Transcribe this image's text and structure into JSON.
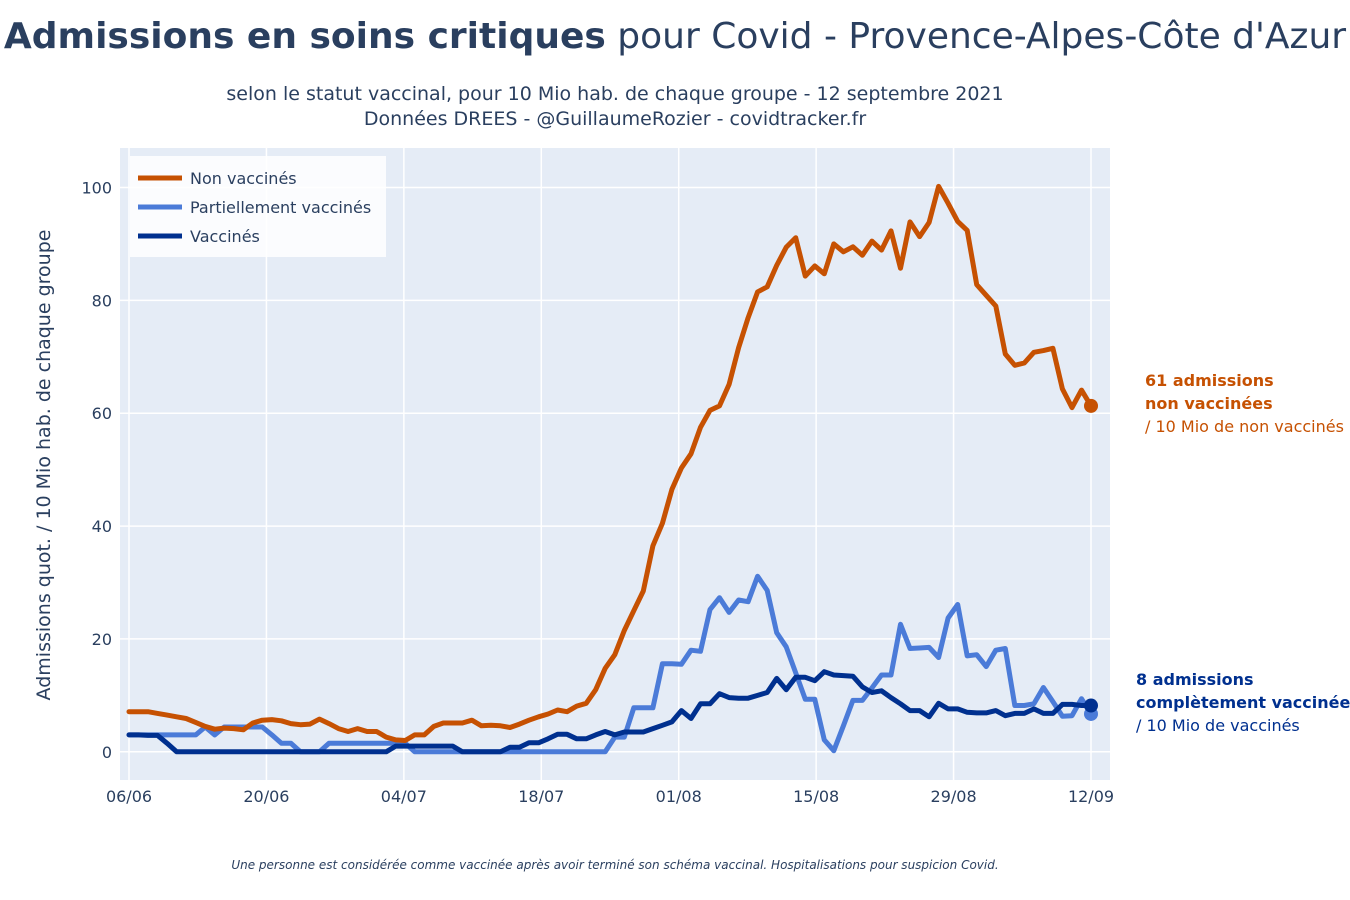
{
  "title_bold": "Admissions en soins critiques",
  "title_rest": " pour Covid - Provence-Alpes-Côte d'Azur",
  "subtitle_line1": "selon le statut vaccinal, pour 10 Mio hab. de chaque groupe - 12 septembre 2021",
  "subtitle_line2": "Données DREES - @GuillaumeRozier - covidtracker.fr",
  "footnote": "Une personne est considérée comme vaccinée après avoir terminé son schéma vaccinal. Hospitalisations pour suspicion Covid.",
  "annotations": {
    "unvaccinated": {
      "line1": "61 admissions",
      "line2": "non vaccinées",
      "line3": "/ 10 Mio de non vaccinés"
    },
    "vaccinated": {
      "line1": "8 admissions",
      "line2": "complètement vaccinée",
      "line3": "/ 10 Mio de vaccinés"
    }
  },
  "colors": {
    "unvaccinated": "#c65102",
    "partial": "#4b7bd8",
    "vaccinated": "#00308f",
    "plot_bg": "#e5ecf6",
    "grid": "#ffffff",
    "text": "#2a3f5f"
  },
  "chart_data": {
    "type": "line",
    "title": "Admissions en soins critiques pour Covid - Provence-Alpes-Côte d'Azur",
    "xlabel": "",
    "ylabel": "Admissions quot. / 10 Mio hab. de chaque groupe",
    "x_start": "2021-06-06",
    "x_end": "2021-09-12",
    "xticks": [
      "06/06",
      "20/06",
      "04/07",
      "18/07",
      "01/08",
      "15/08",
      "29/08",
      "12/09"
    ],
    "yticks": [
      0,
      20,
      40,
      60,
      80,
      100
    ],
    "ylim": [
      -5,
      107
    ],
    "grid": true,
    "legend_position": "top-left",
    "series": [
      {
        "name": "Non vaccinés",
        "color": "#c65102",
        "values": [
          7.1,
          7.1,
          7.1,
          6.8,
          6.5,
          6.2,
          5.9,
          5.2,
          4.5,
          4.0,
          4.2,
          4.1,
          3.9,
          5.1,
          5.6,
          5.7,
          5.5,
          5.0,
          4.8,
          4.9,
          5.8,
          5.0,
          4.1,
          3.6,
          4.1,
          3.6,
          3.6,
          2.6,
          2.1,
          2.0,
          3.0,
          3.0,
          4.5,
          5.1,
          5.1,
          5.1,
          5.6,
          4.6,
          4.7,
          4.6,
          4.3,
          4.9,
          5.6,
          6.2,
          6.7,
          7.4,
          7.1,
          8.1,
          8.6,
          11.0,
          14.8,
          17.2,
          21.5,
          25.0,
          28.5,
          36.5,
          40.5,
          46.5,
          50.3,
          52.8,
          57.5,
          60.5,
          61.3,
          65.1,
          71.6,
          76.9,
          81.5,
          82.4,
          86.2,
          89.4,
          91.1,
          84.3,
          86.1,
          84.7,
          90.0,
          88.6,
          89.5,
          88.0,
          90.5,
          88.9,
          92.3,
          85.7,
          93.9,
          91.3,
          93.8,
          100.2,
          97.2,
          94.0,
          92.4,
          82.8,
          80.9,
          79.0,
          70.5,
          68.5,
          68.9,
          70.8,
          71.1,
          71.5,
          64.3,
          61.0,
          64.1,
          61.3
        ]
      },
      {
        "name": "Partiellement vaccinés",
        "color": "#4b7bd8",
        "values": [
          3.0,
          3.0,
          3.0,
          3.0,
          3.0,
          3.0,
          3.0,
          3.0,
          4.4,
          3.0,
          4.4,
          4.4,
          4.4,
          4.4,
          4.4,
          3.0,
          1.5,
          1.5,
          0,
          0,
          0,
          1.5,
          1.5,
          1.5,
          1.5,
          1.5,
          1.5,
          1.5,
          1.5,
          1.5,
          0,
          0,
          0,
          0,
          0,
          0,
          0,
          0,
          0,
          0,
          0,
          0,
          0,
          0,
          0,
          0,
          0,
          0,
          0,
          0,
          0,
          2.6,
          2.6,
          7.8,
          7.8,
          7.8,
          15.6,
          15.6,
          15.5,
          18.0,
          17.8,
          25.2,
          27.3,
          24.7,
          26.9,
          26.6,
          31.1,
          28.6,
          21.1,
          18.6,
          14.0,
          9.3,
          9.3,
          2.1,
          0.2,
          4.6,
          9.1,
          9.1,
          11.3,
          13.6,
          13.6,
          22.6,
          18.3,
          18.4,
          18.5,
          16.7,
          23.7,
          26.1,
          17.0,
          17.2,
          15.1,
          18.0,
          18.3,
          8.2,
          8.2,
          8.5,
          11.4,
          8.9,
          6.3,
          6.4,
          9.4,
          6.7
        ]
      },
      {
        "name": "Vaccinés",
        "color": "#00308f",
        "values": [
          3.0,
          3.0,
          2.9,
          2.9,
          1.5,
          0,
          0,
          0,
          0,
          0,
          0,
          0,
          0,
          0,
          0,
          0,
          0,
          0,
          0,
          0,
          0,
          0,
          0,
          0,
          0,
          0,
          0,
          0,
          1.0,
          1.0,
          1.0,
          1.0,
          1.0,
          1.0,
          1.0,
          0,
          0,
          0,
          0,
          0,
          0.8,
          0.8,
          1.6,
          1.6,
          2.3,
          3.1,
          3.1,
          2.3,
          2.3,
          3.0,
          3.6,
          3.0,
          3.5,
          3.5,
          3.5,
          4.1,
          4.7,
          5.3,
          7.3,
          5.9,
          8.5,
          8.5,
          10.3,
          9.6,
          9.5,
          9.5,
          10.0,
          10.5,
          13.0,
          11.0,
          13.2,
          13.2,
          12.6,
          14.2,
          13.6,
          13.5,
          13.4,
          11.5,
          10.5,
          10.8,
          9.6,
          8.5,
          7.3,
          7.3,
          6.2,
          8.6,
          7.6,
          7.6,
          7.0,
          6.9,
          6.9,
          7.3,
          6.4,
          6.8,
          6.8,
          7.6,
          6.8,
          6.8,
          8.4,
          8.4,
          8.2,
          8.2
        ]
      }
    ]
  }
}
